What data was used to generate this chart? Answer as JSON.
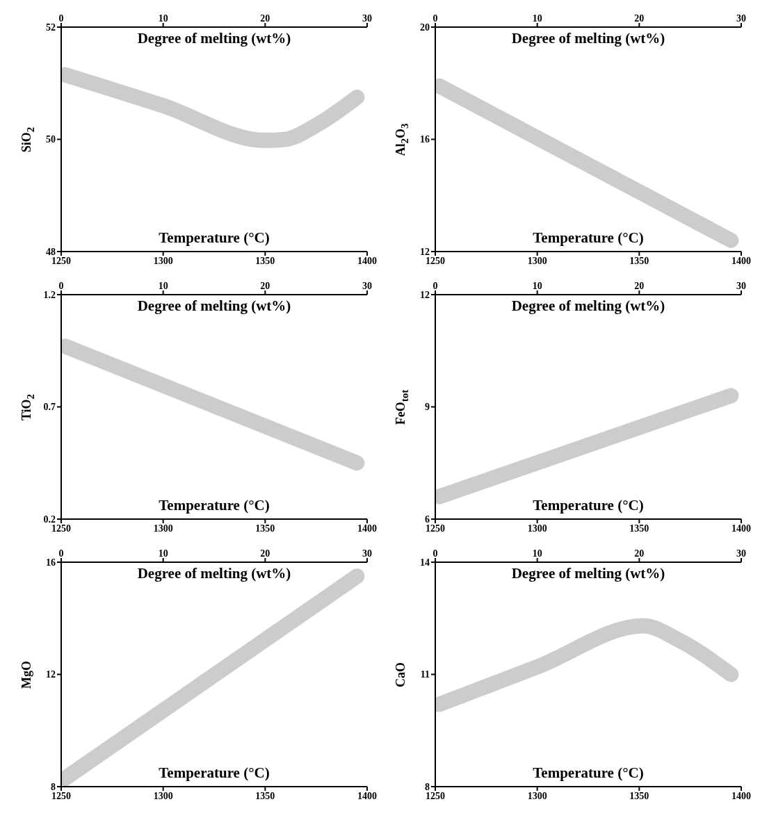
{
  "chart_data": [
    {
      "type": "line",
      "xlabel": "Temperature (°C)",
      "x2label": "Degree of melting (wt%)",
      "ylabel": "SiO$_{2}$",
      "xlim": [
        1250,
        1400
      ],
      "xticks": [
        1250,
        1300,
        1350,
        1400
      ],
      "x2lim": [
        0,
        30
      ],
      "x2ticks": [
        0,
        10,
        20,
        30
      ],
      "ylim": [
        48,
        52
      ],
      "yticks": [
        48,
        50,
        52
      ],
      "series": [
        {
          "color": "#cccccc",
          "x": [
            1252,
            1300,
            1350,
            1360,
            1375,
            1395
          ],
          "values": [
            51.15,
            50.6,
            49.98,
            50.0,
            50.25,
            50.75
          ]
        }
      ]
    },
    {
      "type": "line",
      "xlabel": "Temperature (°C)",
      "x2label": "Degree of melting (wt%)",
      "ylabel": "Al$_{2}$O$_{3}$",
      "xlim": [
        1250,
        1400
      ],
      "xticks": [
        1250,
        1300,
        1350,
        1400
      ],
      "x2lim": [
        0,
        30
      ],
      "x2ticks": [
        0,
        10,
        20,
        30
      ],
      "ylim": [
        12,
        20
      ],
      "yticks": [
        12,
        16,
        20
      ],
      "series": [
        {
          "color": "#cccccc",
          "x": [
            1252,
            1395
          ],
          "values": [
            17.9,
            12.4
          ]
        }
      ]
    },
    {
      "type": "line",
      "xlabel": "Temperature (°C)",
      "x2label": "Degree of melting (wt%)",
      "ylabel": "TiO$_{2}$",
      "xlim": [
        1250,
        1400
      ],
      "xticks": [
        1250,
        1300,
        1350,
        1400
      ],
      "x2lim": [
        0,
        30
      ],
      "x2ticks": [
        0,
        10,
        20,
        30
      ],
      "ylim": [
        0.2,
        1.2
      ],
      "yticks": [
        0.2,
        0.7,
        1.2
      ],
      "series": [
        {
          "color": "#cccccc",
          "x": [
            1252,
            1395
          ],
          "values": [
            0.97,
            0.45
          ]
        }
      ]
    },
    {
      "type": "line",
      "xlabel": "Temperature (°C)",
      "x2label": "Degree of melting (wt%)",
      "ylabel": "FeO$_{tot}$",
      "xlim": [
        1250,
        1400
      ],
      "xticks": [
        1250,
        1300,
        1350,
        1400
      ],
      "x2lim": [
        0,
        30
      ],
      "x2ticks": [
        0,
        10,
        20,
        30
      ],
      "ylim": [
        6,
        12
      ],
      "yticks": [
        6,
        9,
        12
      ],
      "series": [
        {
          "color": "#cccccc",
          "x": [
            1252,
            1395
          ],
          "values": [
            6.6,
            9.3
          ]
        }
      ]
    },
    {
      "type": "line",
      "xlabel": "Temperature (°C)",
      "x2label": "Degree of melting (wt%)",
      "ylabel": "MgO",
      "xlim": [
        1250,
        1400
      ],
      "xticks": [
        1250,
        1300,
        1350,
        1400
      ],
      "x2lim": [
        0,
        30
      ],
      "x2ticks": [
        0,
        10,
        20,
        30
      ],
      "ylim": [
        8,
        16
      ],
      "yticks": [
        8,
        12,
        16
      ],
      "series": [
        {
          "color": "#cccccc",
          "x": [
            1252,
            1395
          ],
          "values": [
            8.3,
            15.5
          ]
        }
      ]
    },
    {
      "type": "line",
      "xlabel": "Temperature (°C)",
      "x2label": "Degree of melting (wt%)",
      "ylabel": "CaO",
      "xlim": [
        1250,
        1400
      ],
      "xticks": [
        1250,
        1300,
        1350,
        1400
      ],
      "x2lim": [
        0,
        30
      ],
      "x2ticks": [
        0,
        10,
        20,
        30
      ],
      "ylim": [
        8,
        14
      ],
      "yticks": [
        8,
        11,
        14
      ],
      "series": [
        {
          "color": "#cccccc",
          "x": [
            1252,
            1300,
            1352,
            1370,
            1395
          ],
          "values": [
            10.2,
            11.2,
            12.3,
            11.9,
            11.0
          ]
        }
      ]
    }
  ]
}
